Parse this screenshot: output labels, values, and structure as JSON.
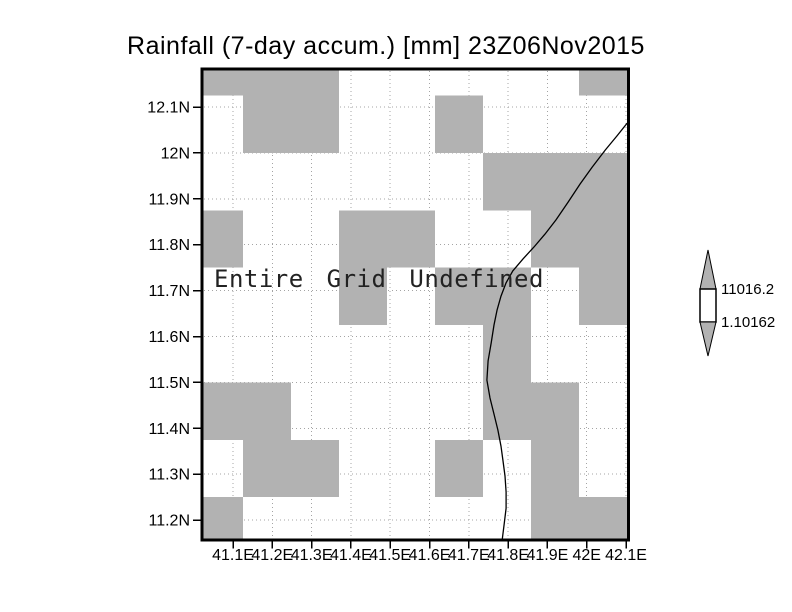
{
  "chart_data": {
    "type": "heatmap",
    "title": "Rainfall (7-day accum.) [mm] 23Z06Nov2015",
    "status": "Entire Grid Undefined",
    "x_ticks": {
      "labels": [
        "41.1E",
        "41.2E",
        "41.3E",
        "41.4E",
        "41.5E",
        "41.6E",
        "41.7E",
        "41.8E",
        "41.9E",
        "42E",
        "42.1E"
      ],
      "values": [
        41.1,
        41.2,
        41.3,
        41.4,
        41.5,
        41.6,
        41.7,
        41.8,
        41.9,
        42.0,
        42.1
      ]
    },
    "y_ticks": {
      "labels": [
        "12.1N",
        "12N",
        "11.9N",
        "11.8N",
        "11.7N",
        "11.6N",
        "11.5N",
        "11.4N",
        "11.3N",
        "11.2N"
      ],
      "values": [
        12.1,
        12.0,
        11.9,
        11.8,
        11.7,
        11.6,
        11.5,
        11.4,
        11.3,
        11.2
      ]
    },
    "lon_range": [
      41.021,
      42.106
    ],
    "lat_range": [
      11.156,
      12.183
    ],
    "grid_on": true,
    "lon_edges": [
      41.021,
      41.125,
      41.248,
      41.37,
      41.492,
      41.614,
      41.736,
      41.858,
      41.98,
      42.106
    ],
    "lat_edges": [
      12.183,
      12.125,
      12.0,
      11.875,
      11.75,
      11.625,
      11.5,
      11.375,
      11.25,
      11.156
    ],
    "undefined_mask": [
      [
        1,
        1,
        1,
        0,
        0,
        0,
        0,
        0,
        1
      ],
      [
        0,
        1,
        1,
        0,
        0,
        1,
        0,
        0,
        0
      ],
      [
        0,
        0,
        0,
        0,
        0,
        0,
        1,
        1,
        1
      ],
      [
        1,
        0,
        0,
        1,
        1,
        0,
        0,
        1,
        1
      ],
      [
        0,
        0,
        0,
        1,
        0,
        1,
        1,
        0,
        1
      ],
      [
        0,
        0,
        0,
        0,
        0,
        0,
        1,
        0,
        0
      ],
      [
        1,
        1,
        0,
        0,
        0,
        0,
        1,
        1,
        0
      ],
      [
        0,
        1,
        1,
        0,
        0,
        1,
        0,
        1,
        0
      ],
      [
        1,
        0,
        0,
        0,
        0,
        0,
        0,
        1,
        1
      ]
    ],
    "coastline": [
      [
        42.103,
        12.065
      ],
      [
        42.077,
        12.037
      ],
      [
        42.047,
        12.006
      ],
      [
        42.014,
        11.969
      ],
      [
        41.983,
        11.932
      ],
      [
        41.953,
        11.893
      ],
      [
        41.922,
        11.854
      ],
      [
        41.894,
        11.823
      ],
      [
        41.866,
        11.795
      ],
      [
        41.838,
        11.769
      ],
      [
        41.812,
        11.743
      ],
      [
        41.795,
        11.717
      ],
      [
        41.782,
        11.688
      ],
      [
        41.772,
        11.658
      ],
      [
        41.764,
        11.625
      ],
      [
        41.757,
        11.586
      ],
      [
        41.749,
        11.547
      ],
      [
        41.746,
        11.505
      ],
      [
        41.754,
        11.466
      ],
      [
        41.764,
        11.431
      ],
      [
        41.774,
        11.396
      ],
      [
        41.782,
        11.361
      ],
      [
        41.787,
        11.329
      ],
      [
        41.792,
        11.296
      ],
      [
        41.795,
        11.261
      ],
      [
        41.795,
        11.226
      ],
      [
        41.79,
        11.192
      ],
      [
        41.785,
        11.157
      ]
    ],
    "colorbar": {
      "top_label": "11016.2",
      "bottom_label": "1.10162",
      "values": [
        11016.2,
        1.10162
      ]
    },
    "colors": {
      "undefined_fill": "#b2b2b2",
      "grid_dots": "#a4a4a4",
      "frame": "#000000",
      "coastline": "#000000"
    }
  }
}
